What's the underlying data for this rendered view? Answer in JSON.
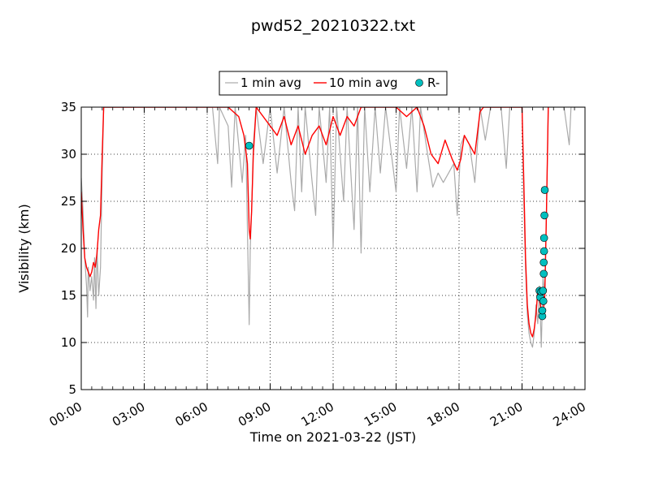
{
  "chart_data": {
    "type": "line",
    "title": "pwd52_20210322.txt",
    "xlabel": "Time on 2021-03-22 (JST)",
    "ylabel": "Visibility (km)",
    "xlim": [
      "00:00",
      "24:00"
    ],
    "ylim": [
      5,
      35
    ],
    "x_ticks": [
      "00:00",
      "03:00",
      "06:00",
      "09:00",
      "12:00",
      "15:00",
      "18:00",
      "21:00",
      "24:00"
    ],
    "y_ticks": [
      "5",
      "10",
      "15",
      "20",
      "25",
      "30",
      "35"
    ],
    "grid": true,
    "legend_position": "top-center, above plot",
    "colors": {
      "1 min avg": "#aaaaaa",
      "10 min avg": "#ff0000",
      "R-": "#00bfbf"
    },
    "series": [
      {
        "name": "1 min avg",
        "style": "line",
        "color": "#aaaaaa",
        "points": [
          [
            "00:00",
            27.5
          ],
          [
            "00:05",
            24.0
          ],
          [
            "00:10",
            19.0
          ],
          [
            "00:15",
            16.0
          ],
          [
            "00:18",
            12.7
          ],
          [
            "00:20",
            18.0
          ],
          [
            "00:25",
            15.5
          ],
          [
            "00:30",
            17.0
          ],
          [
            "00:35",
            14.5
          ],
          [
            "00:38",
            19.0
          ],
          [
            "00:42",
            13.6
          ],
          [
            "00:45",
            20.0
          ],
          [
            "00:50",
            15.0
          ],
          [
            "00:55",
            18.0
          ],
          [
            "01:00",
            28.0
          ],
          [
            "01:04",
            35.0
          ],
          [
            "06:00",
            35.0
          ],
          [
            "06:15",
            35.0
          ],
          [
            "06:30",
            29.0
          ],
          [
            "06:35",
            35.0
          ],
          [
            "07:00",
            33.0
          ],
          [
            "07:10",
            26.5
          ],
          [
            "07:20",
            35.0
          ],
          [
            "07:30",
            31.0
          ],
          [
            "07:40",
            27.0
          ],
          [
            "07:50",
            32.0
          ],
          [
            "08:00",
            11.9
          ],
          [
            "08:03",
            20.0
          ],
          [
            "08:07",
            24.0
          ],
          [
            "08:12",
            31.0
          ],
          [
            "08:20",
            35.0
          ],
          [
            "08:40",
            29.0
          ],
          [
            "09:00",
            35.0
          ],
          [
            "09:20",
            28.0
          ],
          [
            "09:40",
            35.0
          ],
          [
            "10:00",
            27.0
          ],
          [
            "10:10",
            24.0
          ],
          [
            "10:20",
            35.0
          ],
          [
            "10:30",
            26.0
          ],
          [
            "10:40",
            35.0
          ],
          [
            "11:00",
            27.0
          ],
          [
            "11:10",
            23.5
          ],
          [
            "11:20",
            35.0
          ],
          [
            "11:40",
            27.0
          ],
          [
            "11:50",
            35.0
          ],
          [
            "12:00",
            20.0
          ],
          [
            "12:10",
            35.0
          ],
          [
            "12:30",
            25.0
          ],
          [
            "12:40",
            35.0
          ],
          [
            "13:00",
            22.0
          ],
          [
            "13:10",
            35.0
          ],
          [
            "13:20",
            19.5
          ],
          [
            "13:30",
            35.0
          ],
          [
            "13:45",
            26.0
          ],
          [
            "14:00",
            35.0
          ],
          [
            "14:15",
            28.0
          ],
          [
            "14:30",
            35.0
          ],
          [
            "15:00",
            26.0
          ],
          [
            "15:10",
            35.0
          ],
          [
            "15:30",
            28.5
          ],
          [
            "15:45",
            35.0
          ],
          [
            "16:00",
            26.0
          ],
          [
            "16:10",
            35.0
          ],
          [
            "16:30",
            30.0
          ],
          [
            "16:45",
            26.5
          ],
          [
            "17:00",
            28.0
          ],
          [
            "17:15",
            27.0
          ],
          [
            "17:30",
            28.0
          ],
          [
            "17:45",
            29.0
          ],
          [
            "17:55",
            23.5
          ],
          [
            "18:05",
            31.0
          ],
          [
            "18:15",
            32.0
          ],
          [
            "18:30",
            31.0
          ],
          [
            "18:45",
            27.0
          ],
          [
            "19:00",
            35.0
          ],
          [
            "19:15",
            31.5
          ],
          [
            "19:30",
            35.0
          ],
          [
            "20:00",
            35.0
          ],
          [
            "20:15",
            28.5
          ],
          [
            "20:25",
            35.0
          ],
          [
            "21:00",
            35.0
          ],
          [
            "21:05",
            25.0
          ],
          [
            "21:10",
            18.0
          ],
          [
            "21:15",
            13.0
          ],
          [
            "21:20",
            11.0
          ],
          [
            "21:25",
            10.0
          ],
          [
            "21:30",
            9.5
          ],
          [
            "21:35",
            11.0
          ],
          [
            "21:40",
            14.0
          ],
          [
            "21:45",
            12.0
          ],
          [
            "21:50",
            16.0
          ],
          [
            "21:55",
            9.5
          ],
          [
            "22:00",
            17.0
          ],
          [
            "22:05",
            15.0
          ],
          [
            "22:10",
            24.0
          ],
          [
            "22:15",
            35.0
          ],
          [
            "23:00",
            35.0
          ],
          [
            "23:15",
            31.0
          ],
          [
            "23:20",
            35.0
          ],
          [
            "24:00",
            35.0
          ]
        ]
      },
      {
        "name": "10 min avg",
        "style": "line",
        "color": "#ff0000",
        "points": [
          [
            "00:00",
            26.0
          ],
          [
            "00:05",
            22.0
          ],
          [
            "00:10",
            19.0
          ],
          [
            "00:15",
            18.0
          ],
          [
            "00:20",
            17.5
          ],
          [
            "00:25",
            17.0
          ],
          [
            "00:30",
            17.5
          ],
          [
            "00:35",
            18.5
          ],
          [
            "00:40",
            18.0
          ],
          [
            "00:45",
            19.5
          ],
          [
            "00:50",
            22.0
          ],
          [
            "00:55",
            23.5
          ],
          [
            "01:00",
            30.0
          ],
          [
            "01:04",
            35.0
          ],
          [
            "07:00",
            35.0
          ],
          [
            "07:30",
            34.0
          ],
          [
            "07:45",
            32.0
          ],
          [
            "07:55",
            29.0
          ],
          [
            "08:00",
            22.0
          ],
          [
            "08:03",
            21.0
          ],
          [
            "08:07",
            24.0
          ],
          [
            "08:12",
            30.0
          ],
          [
            "08:20",
            35.0
          ],
          [
            "09:00",
            33.0
          ],
          [
            "09:20",
            32.0
          ],
          [
            "09:40",
            34.0
          ],
          [
            "10:00",
            31.0
          ],
          [
            "10:20",
            33.0
          ],
          [
            "10:40",
            30.0
          ],
          [
            "11:00",
            32.0
          ],
          [
            "11:20",
            33.0
          ],
          [
            "11:40",
            31.0
          ],
          [
            "12:00",
            34.0
          ],
          [
            "12:20",
            32.0
          ],
          [
            "12:40",
            34.0
          ],
          [
            "13:00",
            33.0
          ],
          [
            "13:20",
            35.0
          ],
          [
            "15:00",
            35.0
          ],
          [
            "15:30",
            34.0
          ],
          [
            "16:00",
            35.0
          ],
          [
            "16:20",
            33.0
          ],
          [
            "16:40",
            30.0
          ],
          [
            "17:00",
            29.0
          ],
          [
            "17:20",
            31.5
          ],
          [
            "17:40",
            29.5
          ],
          [
            "17:55",
            28.3
          ],
          [
            "18:05",
            29.5
          ],
          [
            "18:15",
            32.0
          ],
          [
            "18:30",
            31.0
          ],
          [
            "18:45",
            30.0
          ],
          [
            "19:00",
            34.5
          ],
          [
            "19:10",
            35.0
          ],
          [
            "21:00",
            35.0
          ],
          [
            "21:05",
            27.0
          ],
          [
            "21:10",
            19.0
          ],
          [
            "21:15",
            14.0
          ],
          [
            "21:20",
            12.0
          ],
          [
            "21:25",
            11.0
          ],
          [
            "21:30",
            10.6
          ],
          [
            "21:35",
            11.5
          ],
          [
            "21:40",
            13.0
          ],
          [
            "21:45",
            15.5
          ],
          [
            "21:50",
            14.5
          ],
          [
            "21:55",
            13.5
          ],
          [
            "22:00",
            13.0
          ],
          [
            "22:05",
            15.0
          ],
          [
            "22:10",
            24.0
          ],
          [
            "22:15",
            35.0
          ]
        ]
      },
      {
        "name": "R-",
        "style": "markers",
        "color": "#00bfbf",
        "points": [
          [
            "08:00",
            30.9
          ],
          [
            "21:50",
            15.5
          ],
          [
            "21:52",
            14.8
          ],
          [
            "21:55",
            15.4
          ],
          [
            "21:58",
            12.8
          ],
          [
            "21:58",
            13.4
          ],
          [
            "22:00",
            15.5
          ],
          [
            "22:01",
            14.4
          ],
          [
            "22:02",
            17.3
          ],
          [
            "22:02",
            18.5
          ],
          [
            "22:03",
            19.7
          ],
          [
            "22:03",
            21.1
          ],
          [
            "22:04",
            23.5
          ],
          [
            "22:05",
            26.2
          ]
        ]
      }
    ]
  }
}
